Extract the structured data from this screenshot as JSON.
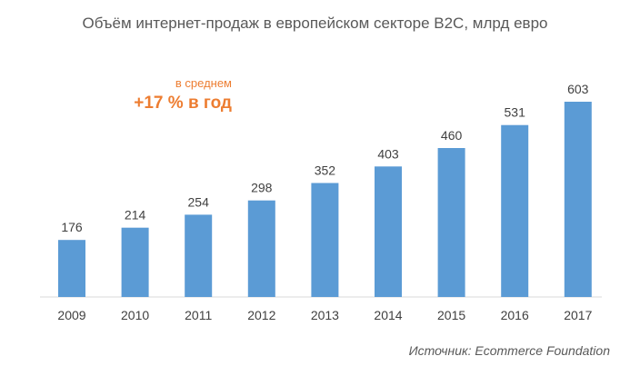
{
  "chart_data": {
    "type": "bar",
    "title": "Объём интернет-продаж в европейском секторе B2C, млрд евро",
    "xlabel": "",
    "ylabel": "",
    "categories": [
      "2009",
      "2010",
      "2011",
      "2012",
      "2013",
      "2014",
      "2015",
      "2016",
      "2017"
    ],
    "values": [
      176,
      214,
      254,
      298,
      352,
      403,
      460,
      531,
      603
    ],
    "ylim": [
      0,
      603
    ],
    "grid": false,
    "bar_color": "#5b9bd5",
    "data_labels": true
  },
  "annotation": {
    "line1": "в среднем",
    "line2": "+17 % в год",
    "color": "#ed7d31"
  },
  "source": "Источник: Ecommerce Foundation"
}
